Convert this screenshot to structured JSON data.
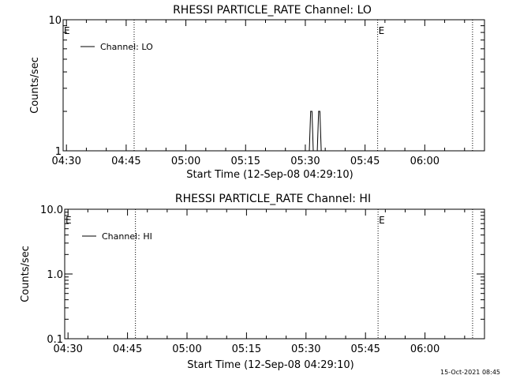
{
  "footer_timestamp": "15-Oct-2021 08:45",
  "chart_data": [
    {
      "type": "line",
      "title": "RHESSI PARTICLE_RATE Channel: LO",
      "xlabel": "Start Time (12-Sep-08 04:29:10)",
      "ylabel": "Counts/sec",
      "xlim": [
        "04:29:10",
        "06:15:00"
      ],
      "yscale": "log",
      "ylim": [
        1,
        10
      ],
      "ytick_labels": [
        "1",
        "10"
      ],
      "yticks": [
        1,
        10
      ],
      "xtick_labels": [
        "04:30",
        "04:45",
        "05:00",
        "05:15",
        "05:30",
        "05:45",
        "06:00"
      ],
      "xticks": [
        "04:30",
        "04:45",
        "05:00",
        "05:15",
        "05:30",
        "05:45",
        "06:00"
      ],
      "grid": false,
      "legend_position": "top-left",
      "series": [
        {
          "name": "Channel: LO",
          "x": [
            "05:31:00",
            "05:31:20",
            "05:31:40",
            "05:32:00",
            "05:32:20",
            "05:33:00",
            "05:33:20",
            "05:33:40",
            "05:34:00"
          ],
          "y": [
            1,
            2,
            2,
            1,
            1,
            1,
            2,
            2,
            1
          ]
        }
      ],
      "vertical_markers": [
        {
          "time": "04:47:00",
          "label": ""
        },
        {
          "time": "05:48:10",
          "label": "E"
        },
        {
          "time": "06:12:00",
          "label": ""
        }
      ],
      "start_marker_label": "E"
    },
    {
      "type": "line",
      "title": "RHESSI PARTICLE_RATE Channel: HI",
      "xlabel": "Start Time (12-Sep-08 04:29:10)",
      "ylabel": "Counts/sec",
      "xlim": [
        "04:29:10",
        "06:15:00"
      ],
      "yscale": "log",
      "ylim": [
        0.1,
        10
      ],
      "ytick_labels": [
        "0.1",
        "1.0",
        "10.0"
      ],
      "yticks": [
        0.1,
        1,
        10
      ],
      "xtick_labels": [
        "04:30",
        "04:45",
        "05:00",
        "05:15",
        "05:30",
        "05:45",
        "06:00"
      ],
      "xticks": [
        "04:30",
        "04:45",
        "05:00",
        "05:15",
        "05:30",
        "05:45",
        "06:00"
      ],
      "grid": false,
      "legend_position": "top-left",
      "series": [
        {
          "name": "Channel: HI",
          "x": [],
          "y": []
        }
      ],
      "vertical_markers": [
        {
          "time": "04:47:00",
          "label": ""
        },
        {
          "time": "05:48:10",
          "label": "E"
        },
        {
          "time": "06:12:00",
          "label": ""
        }
      ],
      "start_marker_label": "E"
    }
  ]
}
